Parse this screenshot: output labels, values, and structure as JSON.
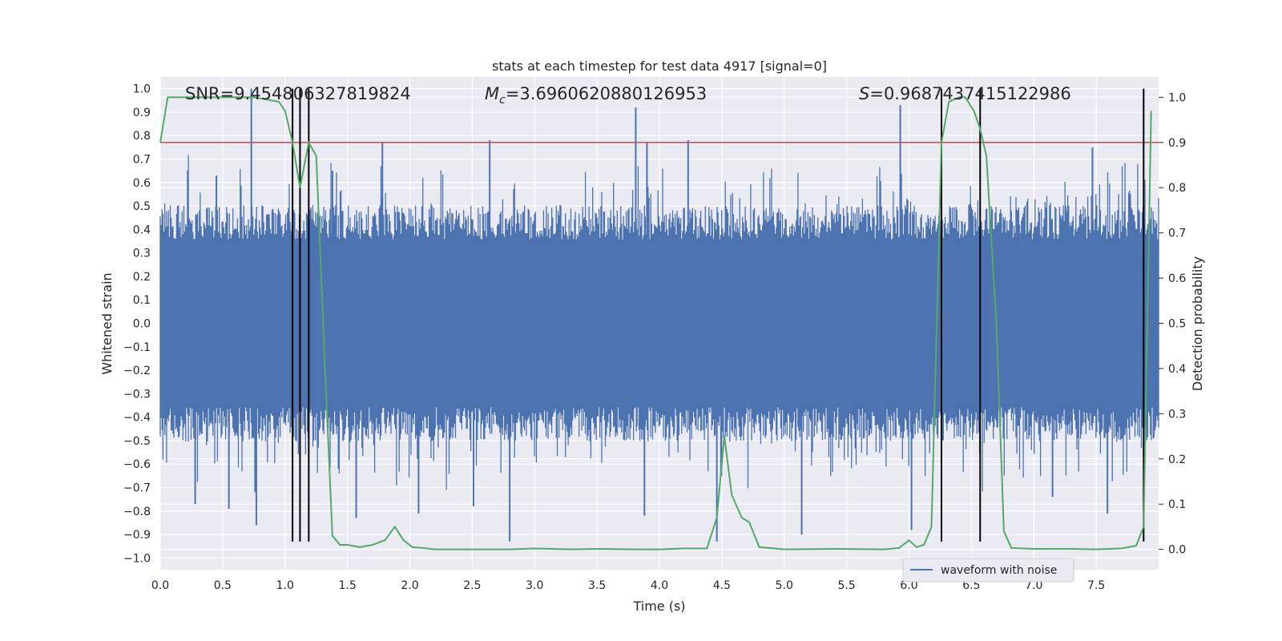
{
  "chart_data": {
    "type": "line",
    "title": "stats at each timestep for test data 4917 [signal=0]",
    "xlabel": "Time (s)",
    "ylabel": "Whitened strain",
    "y2label": "Detection probability",
    "xlim": [
      0.0,
      8.0
    ],
    "ylim": [
      -1.05,
      1.05
    ],
    "y2lim": [
      -0.045,
      1.045
    ],
    "xticks": [
      0.0,
      0.5,
      1.0,
      1.5,
      2.0,
      2.5,
      3.0,
      3.5,
      4.0,
      4.5,
      5.0,
      5.5,
      6.0,
      6.5,
      7.0,
      7.5
    ],
    "xtick_labels": [
      "0.0",
      "0.5",
      "1.0",
      "1.5",
      "2.0",
      "2.5",
      "3.0",
      "3.5",
      "4.0",
      "4.5",
      "5.0",
      "5.5",
      "6.0",
      "6.5",
      "7.0",
      "7.5"
    ],
    "yticks": [
      1.0,
      0.9,
      0.8,
      0.7,
      0.6,
      0.5,
      0.4,
      0.3,
      0.2,
      0.1,
      0.0,
      -0.1,
      -0.2,
      -0.3,
      -0.4,
      -0.5,
      -0.6,
      -0.7,
      -0.8,
      -0.9,
      -1.0
    ],
    "ytick_labels": [
      "1.0",
      "0.9",
      "0.8",
      "0.7",
      "0.6",
      "0.5",
      "0.4",
      "0.3",
      "0.2",
      "0.1",
      "0.0",
      "−0.1",
      "−0.2",
      "−0.3",
      "−0.4",
      "−0.5",
      "−0.6",
      "−0.7",
      "−0.8",
      "−0.9",
      "−1.0"
    ],
    "y2ticks": [
      1.0,
      0.9,
      0.8,
      0.7,
      0.6,
      0.5,
      0.4,
      0.3,
      0.2,
      0.1,
      0.0
    ],
    "y2tick_labels": [
      "1.0",
      "0.9",
      "0.8",
      "0.7",
      "0.6",
      "0.5",
      "0.4",
      "0.3",
      "0.2",
      "0.1",
      "0.0"
    ],
    "annotations": {
      "snr": "SNR=9.454806327819824",
      "mc_symbol": "M",
      "mc_sub": "c",
      "mc_value": "=3.6960620880126953",
      "s_symbol": "S",
      "s_value": "=0.9687437415122986"
    },
    "legend": {
      "label": "waveform with noise",
      "position": "lower-right"
    },
    "grid": true,
    "threshold_line": {
      "y2": 0.9,
      "color": "#c44e52"
    },
    "vertical_lines_x": [
      1.06,
      1.12,
      1.19,
      6.26,
      6.57,
      7.88
    ],
    "waveform": {
      "name": "waveform with noise",
      "color": "#4c72b0",
      "x_range": [
        0.0,
        8.0
      ],
      "band": 0.42,
      "spikes": [
        {
          "x": 0.73,
          "y": 1.0
        },
        {
          "x": 0.76,
          "y": -0.72
        },
        {
          "x": 0.77,
          "y": -0.86
        },
        {
          "x": 0.22,
          "y": 0.65
        },
        {
          "x": 0.28,
          "y": -0.77
        },
        {
          "x": 0.45,
          "y": 0.63
        },
        {
          "x": 1.57,
          "y": -0.83
        },
        {
          "x": 1.78,
          "y": 0.77
        },
        {
          "x": 2.07,
          "y": -0.81
        },
        {
          "x": 2.64,
          "y": 0.78
        },
        {
          "x": 2.8,
          "y": -0.93
        },
        {
          "x": 3.81,
          "y": 0.92
        },
        {
          "x": 3.9,
          "y": 0.77
        },
        {
          "x": 4.23,
          "y": 0.78
        },
        {
          "x": 4.46,
          "y": -0.93
        },
        {
          "x": 3.88,
          "y": -0.82
        },
        {
          "x": 5.14,
          "y": -0.9
        },
        {
          "x": 5.93,
          "y": 0.93
        },
        {
          "x": 6.02,
          "y": -0.88
        },
        {
          "x": 7.47,
          "y": 0.75
        },
        {
          "x": 7.59,
          "y": -0.81
        },
        {
          "x": 7.15,
          "y": -0.74
        },
        {
          "x": 1.38,
          "y": 0.65
        },
        {
          "x": 2.51,
          "y": -0.78
        },
        {
          "x": 0.55,
          "y": -0.79
        }
      ]
    },
    "detection_probability": {
      "name": "detection probability",
      "color": "#55a868",
      "x": [
        0.0,
        0.06,
        0.2,
        0.4,
        0.6,
        0.75,
        0.85,
        0.95,
        1.0,
        1.06,
        1.12,
        1.19,
        1.25,
        1.32,
        1.38,
        1.44,
        1.5,
        1.6,
        1.7,
        1.8,
        1.88,
        1.95,
        2.02,
        2.1,
        2.2,
        2.3,
        2.5,
        2.8,
        3.0,
        3.3,
        3.5,
        3.8,
        4.0,
        4.2,
        4.38,
        4.46,
        4.52,
        4.58,
        4.66,
        4.72,
        4.8,
        5.0,
        5.4,
        5.8,
        5.92,
        6.0,
        6.06,
        6.12,
        6.18,
        6.26,
        6.32,
        6.4,
        6.45,
        6.52,
        6.57,
        6.62,
        6.7,
        6.76,
        6.82,
        7.0,
        7.3,
        7.5,
        7.7,
        7.82,
        7.88,
        7.94
      ],
      "y": [
        0.9,
        1.0,
        1.0,
        1.0,
        1.0,
        1.0,
        0.995,
        0.99,
        0.97,
        0.9,
        0.8,
        0.9,
        0.87,
        0.4,
        0.03,
        0.01,
        0.01,
        0.005,
        0.01,
        0.02,
        0.05,
        0.02,
        0.005,
        0.003,
        0.0,
        0.0,
        0.0,
        0.0,
        0.002,
        0.0,
        0.001,
        0.0,
        0.0,
        0.002,
        0.002,
        0.07,
        0.25,
        0.12,
        0.07,
        0.06,
        0.005,
        0.0,
        0.001,
        0.0,
        0.003,
        0.02,
        0.005,
        0.01,
        0.05,
        0.9,
        0.99,
        1.0,
        1.0,
        0.97,
        0.93,
        0.87,
        0.5,
        0.04,
        0.003,
        0.001,
        0.001,
        0.0,
        0.002,
        0.008,
        0.05,
        0.97
      ]
    }
  }
}
